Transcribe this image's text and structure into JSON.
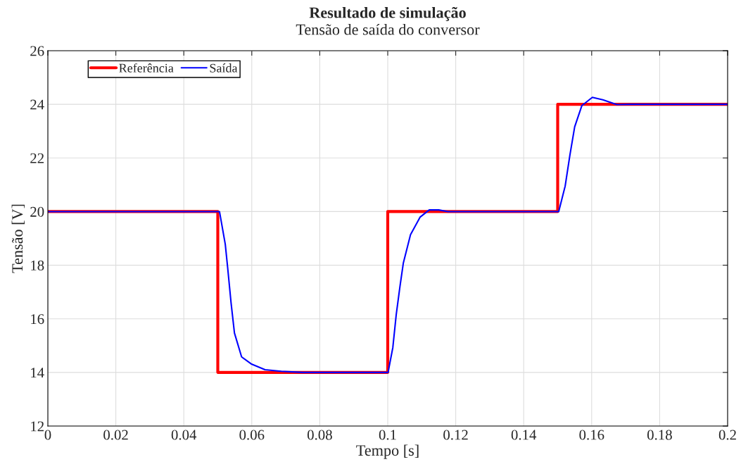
{
  "chart_data": {
    "type": "line",
    "title": "Resultado de simulação",
    "subtitle": "Tensão de saída do conversor",
    "xlabel": "Tempo [s]",
    "ylabel": "Tensão [V]",
    "xlim": [
      0,
      0.2
    ],
    "ylim": [
      12,
      26
    ],
    "xticks": [
      0,
      0.02,
      0.04,
      0.06,
      0.08,
      0.1,
      0.12,
      0.14,
      0.16,
      0.18,
      0.2
    ],
    "yticks": [
      12,
      14,
      16,
      18,
      20,
      22,
      24,
      26
    ],
    "grid": true,
    "legend": "top left",
    "line_style": "solid",
    "marker": "none",
    "series": [
      {
        "name": "Referência",
        "color": "#ff0000",
        "x": [
          0,
          0.05,
          0.05,
          0.1,
          0.1,
          0.15,
          0.15,
          0.2
        ],
        "values": [
          20,
          20,
          14,
          14,
          20,
          20,
          24,
          24
        ]
      },
      {
        "name": "Saída",
        "color": "#0000ff",
        "x": [
          0,
          0.05,
          0.0505,
          0.0522,
          0.0529,
          0.0539,
          0.0549,
          0.057,
          0.0598,
          0.0639,
          0.0687,
          0.075,
          0.1,
          0.1001,
          0.1015,
          0.1025,
          0.1036,
          0.1046,
          0.1067,
          0.1095,
          0.1122,
          0.115,
          0.1177,
          0.15,
          0.1503,
          0.1522,
          0.1536,
          0.155,
          0.1571,
          0.1602,
          0.1633,
          0.1674,
          0.1716,
          0.2
        ],
        "values": [
          20,
          20,
          20,
          18.78,
          17.91,
          16.6,
          15.47,
          14.58,
          14.32,
          14.1,
          14.04,
          14,
          14,
          14,
          14.93,
          16.16,
          17.21,
          18.09,
          19.14,
          19.79,
          20.06,
          20.06,
          20,
          20,
          20,
          20.95,
          22.11,
          23.16,
          23.95,
          24.26,
          24.17,
          23.99,
          24,
          24
        ]
      }
    ]
  }
}
